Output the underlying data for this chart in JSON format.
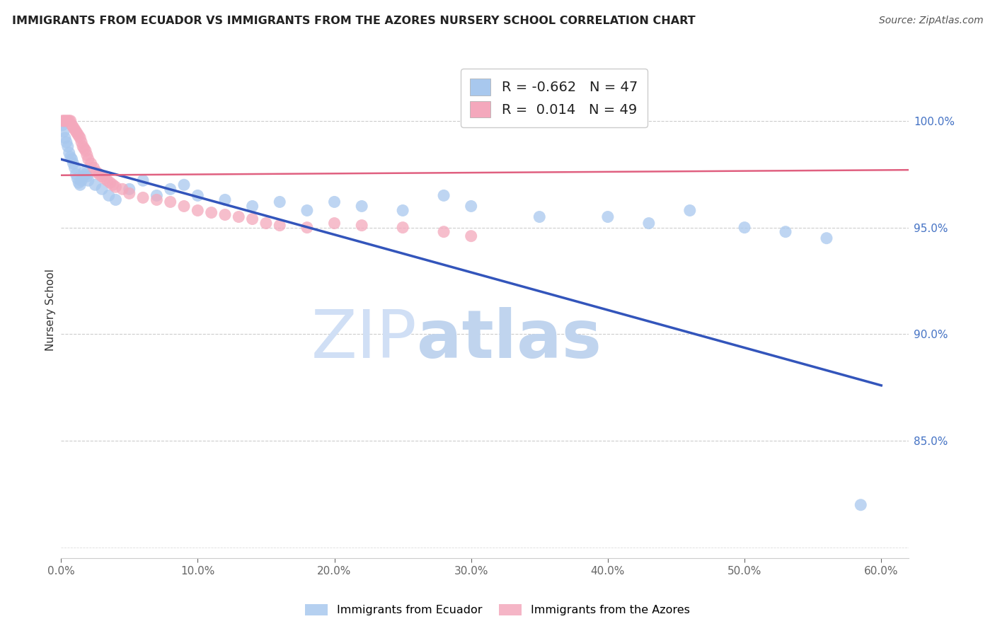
{
  "title": "IMMIGRANTS FROM ECUADOR VS IMMIGRANTS FROM THE AZORES NURSERY SCHOOL CORRELATION CHART",
  "source": "Source: ZipAtlas.com",
  "ylabel": "Nursery School",
  "legend_blue_R": "-0.662",
  "legend_blue_N": "47",
  "legend_pink_R": "0.014",
  "legend_pink_N": "49",
  "blue_color": "#A8C8EE",
  "pink_color": "#F4A8BC",
  "blue_line_color": "#3355BB",
  "pink_line_color": "#E06080",
  "watermark_zip": "ZIP",
  "watermark_atlas": "atlas",
  "watermark_color": "#D0DFF5",
  "xlim": [
    0.0,
    0.62
  ],
  "ylim": [
    0.795,
    1.028
  ],
  "yticks": [
    1.0,
    0.95,
    0.9,
    0.85
  ],
  "ytick_labels": [
    "100.0%",
    "95.0%",
    "90.0%",
    "85.0%"
  ],
  "xticks": [
    0.0,
    0.1,
    0.2,
    0.3,
    0.4,
    0.5,
    0.6
  ],
  "xtick_labels": [
    "0.0%",
    "10.0%",
    "20.0%",
    "30.0%",
    "40.0%",
    "50.0%",
    "60.0%"
  ],
  "blue_scatter_x": [
    0.001,
    0.002,
    0.003,
    0.004,
    0.005,
    0.006,
    0.007,
    0.008,
    0.009,
    0.01,
    0.011,
    0.012,
    0.013,
    0.014,
    0.015,
    0.016,
    0.017,
    0.018,
    0.019,
    0.02,
    0.025,
    0.03,
    0.035,
    0.04,
    0.05,
    0.06,
    0.07,
    0.08,
    0.09,
    0.1,
    0.12,
    0.14,
    0.16,
    0.18,
    0.2,
    0.22,
    0.25,
    0.28,
    0.3,
    0.35,
    0.4,
    0.43,
    0.46,
    0.5,
    0.53,
    0.56,
    0.585
  ],
  "blue_scatter_y": [
    0.998,
    0.995,
    0.992,
    0.99,
    0.988,
    0.985,
    0.983,
    0.982,
    0.98,
    0.978,
    0.975,
    0.973,
    0.971,
    0.97,
    0.972,
    0.974,
    0.976,
    0.975,
    0.974,
    0.972,
    0.97,
    0.968,
    0.965,
    0.963,
    0.968,
    0.972,
    0.965,
    0.968,
    0.97,
    0.965,
    0.963,
    0.96,
    0.962,
    0.958,
    0.962,
    0.96,
    0.958,
    0.965,
    0.96,
    0.955,
    0.955,
    0.952,
    0.958,
    0.95,
    0.948,
    0.945,
    0.82
  ],
  "pink_scatter_x": [
    0.001,
    0.002,
    0.003,
    0.004,
    0.005,
    0.006,
    0.007,
    0.008,
    0.009,
    0.01,
    0.011,
    0.012,
    0.013,
    0.014,
    0.015,
    0.016,
    0.017,
    0.018,
    0.019,
    0.02,
    0.022,
    0.024,
    0.026,
    0.028,
    0.03,
    0.032,
    0.034,
    0.036,
    0.038,
    0.04,
    0.045,
    0.05,
    0.06,
    0.07,
    0.08,
    0.09,
    0.1,
    0.11,
    0.12,
    0.13,
    0.14,
    0.15,
    0.16,
    0.18,
    0.2,
    0.22,
    0.25,
    0.28,
    0.3
  ],
  "pink_scatter_y": [
    1.0,
    1.0,
    1.0,
    1.0,
    1.0,
    1.0,
    1.0,
    0.998,
    0.997,
    0.996,
    0.995,
    0.994,
    0.993,
    0.992,
    0.99,
    0.988,
    0.987,
    0.986,
    0.984,
    0.982,
    0.98,
    0.978,
    0.976,
    0.975,
    0.974,
    0.973,
    0.972,
    0.971,
    0.97,
    0.969,
    0.968,
    0.966,
    0.964,
    0.963,
    0.962,
    0.96,
    0.958,
    0.957,
    0.956,
    0.955,
    0.954,
    0.952,
    0.951,
    0.95,
    0.952,
    0.951,
    0.95,
    0.948,
    0.946
  ],
  "blue_line_x": [
    0.0,
    0.6
  ],
  "blue_line_y": [
    0.982,
    0.876
  ],
  "pink_line_x": [
    0.0,
    0.62
  ],
  "pink_line_y": [
    0.9745,
    0.977
  ]
}
